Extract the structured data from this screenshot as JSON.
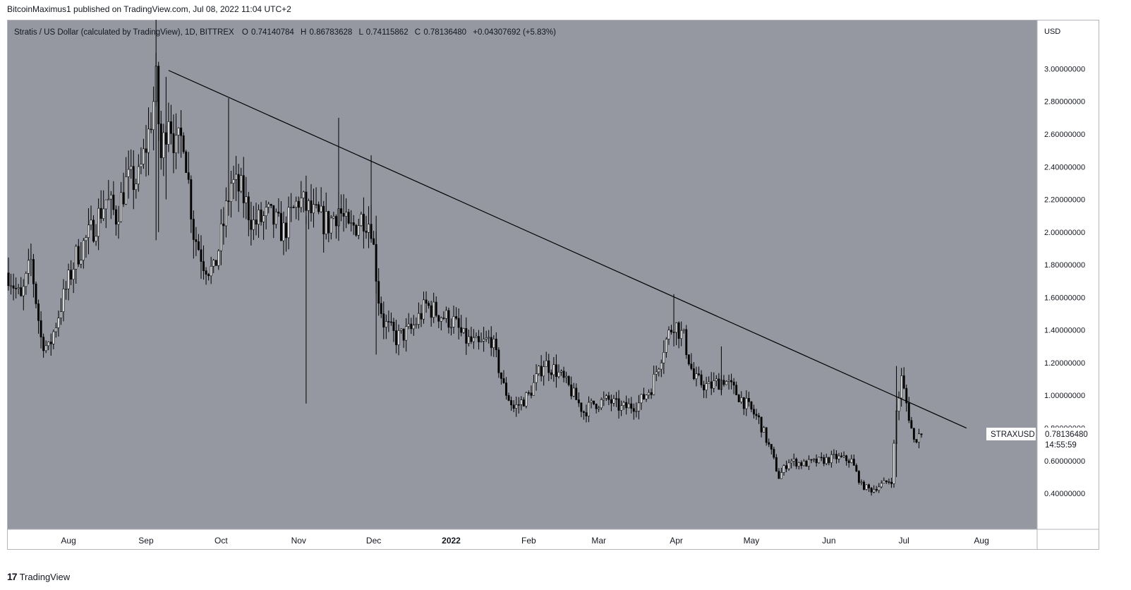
{
  "header": {
    "published": "BitcoinMaximus1 published on TradingView.com, Jul 08, 2022 11:04 UTC+2"
  },
  "legend": {
    "symbol": "Stratis / US Dollar (calculated by TradingView), 1D, BITTREX",
    "o_label": "O",
    "o_value": "0.74140784",
    "h_label": "H",
    "h_value": "0.86783628",
    "l_label": "L",
    "l_value": "0.74115862",
    "c_label": "C",
    "c_value": "0.78136480",
    "change": "+0.04307692 (+5.83%)"
  },
  "price_tag": {
    "symbol": "STRAXUSD",
    "price": "0.78136480",
    "countdown": "14:55:59"
  },
  "footer": {
    "brand": "TradingView",
    "logo_glyph": "17"
  },
  "colors": {
    "plot_bg": "#9598a1",
    "candle": "#000000",
    "hollow": "#ffffff",
    "trendline": "#000000"
  },
  "chart_data": {
    "type": "candlestick",
    "currency": "USD",
    "x_start": "2021-07-08",
    "x_end": "2022-07-08",
    "ylim": [
      0.18,
      3.3
    ],
    "y_ticks": [
      {
        "value": 0.4,
        "label": "0.40000000"
      },
      {
        "value": 0.6,
        "label": "0.60000000"
      },
      {
        "value": 0.8,
        "label": "0.80000000"
      },
      {
        "value": 1.0,
        "label": "1.00000000"
      },
      {
        "value": 1.2,
        "label": "1.20000000"
      },
      {
        "value": 1.4,
        "label": "1.40000000"
      },
      {
        "value": 1.6,
        "label": "1.60000000"
      },
      {
        "value": 1.8,
        "label": "1.80000000"
      },
      {
        "value": 2.0,
        "label": "2.00000000"
      },
      {
        "value": 2.2,
        "label": "2.20000000"
      },
      {
        "value": 2.4,
        "label": "2.40000000"
      },
      {
        "value": 2.6,
        "label": "2.60000000"
      },
      {
        "value": 2.8,
        "label": "2.80000000"
      },
      {
        "value": 3.0,
        "label": "3.00000000"
      }
    ],
    "x_ticks": [
      {
        "date": "2021-08-01",
        "label": "Aug"
      },
      {
        "date": "2021-09-01",
        "label": "Sep"
      },
      {
        "date": "2021-10-01",
        "label": "Oct"
      },
      {
        "date": "2021-11-01",
        "label": "Nov"
      },
      {
        "date": "2021-12-01",
        "label": "Dec"
      },
      {
        "date": "2022-01-01",
        "label": "2022",
        "bold": true
      },
      {
        "date": "2022-02-01",
        "label": "Feb"
      },
      {
        "date": "2022-03-01",
        "label": "Mar"
      },
      {
        "date": "2022-04-01",
        "label": "Apr"
      },
      {
        "date": "2022-05-01",
        "label": "May"
      },
      {
        "date": "2022-06-01",
        "label": "Jun"
      },
      {
        "date": "2022-07-01",
        "label": "Jul"
      },
      {
        "date": "2022-08-01",
        "label": "Aug"
      }
    ],
    "close_path": [
      [
        "2021-07-08",
        1.75
      ],
      [
        "2021-07-13",
        1.58
      ],
      [
        "2021-07-17",
        1.82
      ],
      [
        "2021-07-21",
        1.35
      ],
      [
        "2021-07-24",
        1.28
      ],
      [
        "2021-07-29",
        1.55
      ],
      [
        "2021-08-04",
        1.85
      ],
      [
        "2021-08-10",
        2.0
      ],
      [
        "2021-08-16",
        2.2
      ],
      [
        "2021-08-20",
        2.1
      ],
      [
        "2021-08-24",
        2.3
      ],
      [
        "2021-08-29",
        2.32
      ],
      [
        "2021-09-02",
        2.6
      ],
      [
        "2021-09-05",
        2.9
      ],
      [
        "2021-09-07",
        2.45
      ],
      [
        "2021-09-10",
        2.75
      ],
      [
        "2021-09-13",
        2.5
      ],
      [
        "2021-09-16",
        2.6
      ],
      [
        "2021-09-20",
        2.0
      ],
      [
        "2021-09-24",
        1.82
      ],
      [
        "2021-09-28",
        1.75
      ],
      [
        "2021-10-02",
        2.05
      ],
      [
        "2021-10-05",
        2.3
      ],
      [
        "2021-10-09",
        2.25
      ],
      [
        "2021-10-14",
        2.05
      ],
      [
        "2021-10-20",
        2.1
      ],
      [
        "2021-10-26",
        2.0
      ],
      [
        "2021-11-01",
        2.2
      ],
      [
        "2021-11-07",
        2.1
      ],
      [
        "2021-11-13",
        2.05
      ],
      [
        "2021-11-17",
        2.15
      ],
      [
        "2021-11-21",
        2.0
      ],
      [
        "2021-11-27",
        2.1
      ],
      [
        "2021-11-30",
        2.05
      ],
      [
        "2021-12-03",
        1.6
      ],
      [
        "2021-12-05",
        1.45
      ],
      [
        "2021-12-10",
        1.35
      ],
      [
        "2021-12-16",
        1.4
      ],
      [
        "2021-12-22",
        1.55
      ],
      [
        "2021-12-27",
        1.5
      ],
      [
        "2022-01-02",
        1.45
      ],
      [
        "2022-01-06",
        1.35
      ],
      [
        "2022-01-12",
        1.3
      ],
      [
        "2022-01-17",
        1.35
      ],
      [
        "2022-01-22",
        1.05
      ],
      [
        "2022-01-26",
        0.92
      ],
      [
        "2022-02-01",
        1.0
      ],
      [
        "2022-02-07",
        1.2
      ],
      [
        "2022-02-12",
        1.15
      ],
      [
        "2022-02-17",
        1.05
      ],
      [
        "2022-02-23",
        0.9
      ],
      [
        "2022-02-27",
        0.95
      ],
      [
        "2022-03-05",
        0.97
      ],
      [
        "2022-03-10",
        0.92
      ],
      [
        "2022-03-17",
        0.95
      ],
      [
        "2022-03-22",
        1.05
      ],
      [
        "2022-03-27",
        1.3
      ],
      [
        "2022-03-31",
        1.45
      ],
      [
        "2022-04-04",
        1.35
      ],
      [
        "2022-04-08",
        1.1
      ],
      [
        "2022-04-14",
        1.05
      ],
      [
        "2022-04-20",
        1.1
      ],
      [
        "2022-04-27",
        0.98
      ],
      [
        "2022-05-04",
        0.85
      ],
      [
        "2022-05-09",
        0.65
      ],
      [
        "2022-05-12",
        0.5
      ],
      [
        "2022-05-16",
        0.6
      ],
      [
        "2022-05-22",
        0.58
      ],
      [
        "2022-05-29",
        0.6
      ],
      [
        "2022-06-04",
        0.62
      ],
      [
        "2022-06-10",
        0.6
      ],
      [
        "2022-06-14",
        0.45
      ],
      [
        "2022-06-18",
        0.42
      ],
      [
        "2022-06-24",
        0.47
      ],
      [
        "2022-06-26",
        0.48
      ],
      [
        "2022-06-28",
        0.9
      ],
      [
        "2022-06-30",
        1.1
      ],
      [
        "2022-07-02",
        0.95
      ],
      [
        "2022-07-05",
        0.72
      ],
      [
        "2022-07-08",
        0.78
      ]
    ],
    "spikes": [
      {
        "date": "2021-09-05",
        "high": 3.3,
        "low": 1.95
      },
      {
        "date": "2021-09-06",
        "high": 2.95,
        "low": 2.0
      },
      {
        "date": "2021-09-09",
        "high": 2.95,
        "low": 2.2
      },
      {
        "date": "2021-10-04",
        "high": 2.82,
        "low": 2.1
      },
      {
        "date": "2021-11-04",
        "high": 2.1,
        "low": 0.95
      },
      {
        "date": "2021-11-17",
        "high": 2.7,
        "low": 2.0
      },
      {
        "date": "2021-11-30",
        "high": 2.47,
        "low": 1.95
      },
      {
        "date": "2021-12-02",
        "high": 2.1,
        "low": 1.25
      },
      {
        "date": "2022-03-31",
        "high": 1.62,
        "low": 1.3
      },
      {
        "date": "2022-04-19",
        "high": 1.3,
        "low": 1.0
      },
      {
        "date": "2022-06-28",
        "high": 1.18,
        "low": 0.5
      }
    ],
    "trendline": [
      [
        "2021-09-10",
        2.99
      ],
      [
        "2022-07-26",
        0.8
      ]
    ]
  }
}
